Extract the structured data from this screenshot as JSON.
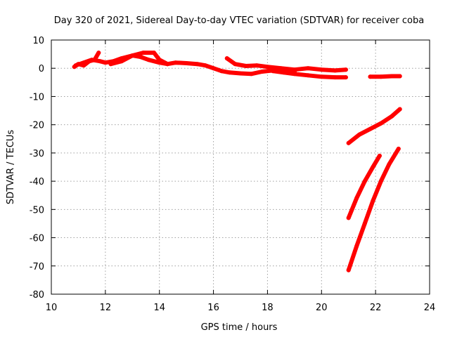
{
  "chart_data": {
    "type": "scatter",
    "title": "Day 320 of 2021, Sidereal Day-to-day VTEC variation (SDTVAR) for receiver coba",
    "xlabel": "GPS time / hours",
    "ylabel": "SDTVAR / TECUs",
    "xlim": [
      10,
      24
    ],
    "ylim": [
      -80,
      10
    ],
    "xticks": [
      "10",
      "12",
      "14",
      "16",
      "18",
      "20",
      "22",
      "24"
    ],
    "yticks": [
      "10",
      "0",
      "-10",
      "-20",
      "-30",
      "-40",
      "-50",
      "-60",
      "-70",
      "-80"
    ],
    "grid": true,
    "legend": "none",
    "series_color": "#ff0000",
    "series": [
      {
        "points": [
          [
            10.85,
            0.5
          ],
          [
            11.0,
            1.5
          ],
          [
            11.2,
            1.0
          ],
          [
            11.4,
            2.5
          ],
          [
            11.6,
            3.0
          ],
          [
            11.75,
            5.5
          ]
        ]
      },
      {
        "points": [
          [
            10.9,
            1.0
          ],
          [
            11.2,
            2.0
          ],
          [
            11.5,
            3.0
          ],
          [
            11.8,
            2.5
          ],
          [
            12.0,
            2.0
          ],
          [
            12.3,
            2.5
          ],
          [
            12.6,
            3.5
          ],
          [
            13.0,
            4.5
          ],
          [
            13.3,
            4.0
          ],
          [
            13.6,
            3.0
          ],
          [
            14.0,
            2.0
          ],
          [
            14.3,
            1.5
          ],
          [
            14.6,
            2.0
          ],
          [
            15.0,
            1.8
          ],
          [
            15.4,
            1.5
          ],
          [
            15.7,
            1.0
          ],
          [
            16.0,
            0.0
          ],
          [
            16.3,
            -1.0
          ],
          [
            16.6,
            -1.5
          ],
          [
            17.0,
            -1.8
          ],
          [
            17.4,
            -2.0
          ],
          [
            17.8,
            -1.2
          ],
          [
            18.2,
            -0.8
          ],
          [
            18.6,
            -1.0
          ],
          [
            19.0,
            -1.2
          ]
        ]
      },
      {
        "points": [
          [
            12.2,
            1.5
          ],
          [
            12.6,
            2.5
          ],
          [
            13.0,
            4.5
          ],
          [
            13.4,
            5.5
          ],
          [
            13.8,
            5.5
          ],
          [
            14.0,
            3.0
          ],
          [
            14.3,
            1.5
          ]
        ]
      },
      {
        "points": [
          [
            16.5,
            3.5
          ],
          [
            16.8,
            1.5
          ],
          [
            17.2,
            0.8
          ],
          [
            17.6,
            1.0
          ],
          [
            18.0,
            0.5
          ],
          [
            18.5,
            0.0
          ],
          [
            19.0,
            -0.5
          ],
          [
            19.5,
            0.0
          ],
          [
            20.0,
            -0.5
          ],
          [
            20.5,
            -0.8
          ],
          [
            20.9,
            -0.5
          ]
        ]
      },
      {
        "points": [
          [
            18.2,
            -1.0
          ],
          [
            18.6,
            -1.5
          ],
          [
            19.0,
            -2.0
          ],
          [
            19.5,
            -2.5
          ],
          [
            20.0,
            -3.0
          ],
          [
            20.5,
            -3.2
          ],
          [
            20.9,
            -3.2
          ]
        ]
      },
      {
        "points": [
          [
            21.8,
            -3.0
          ],
          [
            22.2,
            -3.0
          ],
          [
            22.6,
            -2.8
          ],
          [
            22.9,
            -2.8
          ]
        ]
      },
      {
        "points": [
          [
            21.0,
            -26.5
          ],
          [
            21.4,
            -23.5
          ],
          [
            21.8,
            -21.5
          ],
          [
            22.2,
            -19.5
          ],
          [
            22.6,
            -17.0
          ],
          [
            22.9,
            -14.5
          ]
        ]
      },
      {
        "points": [
          [
            21.0,
            -53.0
          ],
          [
            21.3,
            -46.0
          ],
          [
            21.6,
            -40.0
          ],
          [
            21.9,
            -35.0
          ],
          [
            22.15,
            -31.0
          ]
        ]
      },
      {
        "points": [
          [
            21.0,
            -71.5
          ],
          [
            21.3,
            -63.0
          ],
          [
            21.6,
            -55.0
          ],
          [
            21.9,
            -47.0
          ],
          [
            22.2,
            -40.0
          ],
          [
            22.5,
            -34.0
          ],
          [
            22.85,
            -28.5
          ]
        ]
      }
    ]
  }
}
